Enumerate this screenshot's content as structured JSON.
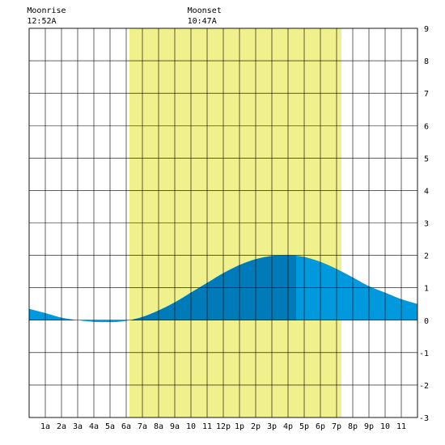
{
  "chart_data": {
    "type": "area",
    "title": "",
    "xlabel": "",
    "ylabel": "",
    "xlim": [
      0,
      24
    ],
    "ylim": [
      -3,
      9
    ],
    "y_ticks": [
      9,
      8,
      7,
      6,
      5,
      4,
      3,
      2,
      1,
      0,
      -1,
      -2,
      -3
    ],
    "x_tick_labels": [
      "1a",
      "2a",
      "3a",
      "4a",
      "5a",
      "6a",
      "7a",
      "8a",
      "9a",
      "10",
      "11",
      "12p",
      "1p",
      "2p",
      "3p",
      "4p",
      "5p",
      "6p",
      "7p",
      "8p",
      "9p",
      "10",
      "11"
    ],
    "grid": true,
    "daylight": {
      "start_hour": 6.2,
      "end_hour": 19.3,
      "color": "#f0f08c"
    },
    "annotations": [
      {
        "title": "Moonrise",
        "time": "12:52A",
        "hour": 0.87
      },
      {
        "title": "Moonset",
        "time": "10:47A",
        "hour": 10.78
      }
    ],
    "series": [
      {
        "x": [
          0,
          1,
          2,
          3,
          4,
          5,
          6,
          7,
          8,
          9,
          10,
          11,
          12,
          13,
          14,
          15,
          16,
          16.5,
          17,
          18,
          19,
          20,
          21,
          22,
          23,
          24
        ],
        "values": [
          0.35,
          0.22,
          0.08,
          0.0,
          -0.05,
          -0.06,
          -0.02,
          0.1,
          0.3,
          0.55,
          0.85,
          1.15,
          1.45,
          1.7,
          1.88,
          1.98,
          2.0,
          1.99,
          1.95,
          1.8,
          1.58,
          1.32,
          1.05,
          0.85,
          0.65,
          0.5
        ]
      }
    ],
    "colors": {
      "fill": "#0099dd",
      "fill_dark": "#007ab8",
      "grid": "#000000",
      "background": "#ffffff"
    },
    "dark_fill_range": [
      6.2,
      16.5
    ]
  }
}
